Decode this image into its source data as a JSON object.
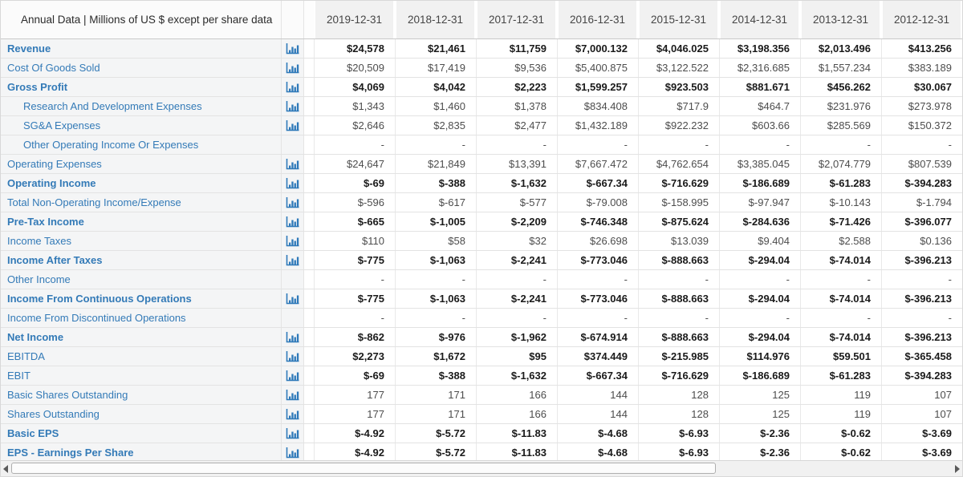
{
  "table": {
    "header_label": "Annual Data | Millions of US $ except per share data",
    "columns": [
      "2019-12-31",
      "2018-12-31",
      "2017-12-31",
      "2016-12-31",
      "2015-12-31",
      "2014-12-31",
      "2013-12-31",
      "2012-12-31"
    ],
    "rows": [
      {
        "label": "Revenue",
        "bold": true,
        "indent": false,
        "has_chart_icon": true,
        "values_bold": true,
        "values": [
          "$24,578",
          "$21,461",
          "$11,759",
          "$7,000.132",
          "$4,046.025",
          "$3,198.356",
          "$2,013.496",
          "$413.256"
        ]
      },
      {
        "label": "Cost Of Goods Sold",
        "bold": false,
        "indent": false,
        "has_chart_icon": true,
        "values_bold": false,
        "values": [
          "$20,509",
          "$17,419",
          "$9,536",
          "$5,400.875",
          "$3,122.522",
          "$2,316.685",
          "$1,557.234",
          "$383.189"
        ]
      },
      {
        "label": "Gross Profit",
        "bold": true,
        "indent": false,
        "has_chart_icon": true,
        "values_bold": true,
        "values": [
          "$4,069",
          "$4,042",
          "$2,223",
          "$1,599.257",
          "$923.503",
          "$881.671",
          "$456.262",
          "$30.067"
        ]
      },
      {
        "label": "Research And Development Expenses",
        "bold": false,
        "indent": true,
        "has_chart_icon": true,
        "values_bold": false,
        "values": [
          "$1,343",
          "$1,460",
          "$1,378",
          "$834.408",
          "$717.9",
          "$464.7",
          "$231.976",
          "$273.978"
        ]
      },
      {
        "label": "SG&A Expenses",
        "bold": false,
        "indent": true,
        "has_chart_icon": true,
        "values_bold": false,
        "values": [
          "$2,646",
          "$2,835",
          "$2,477",
          "$1,432.189",
          "$922.232",
          "$603.66",
          "$285.569",
          "$150.372"
        ]
      },
      {
        "label": "Other Operating Income Or Expenses",
        "bold": false,
        "indent": true,
        "has_chart_icon": false,
        "values_bold": false,
        "values": [
          "-",
          "-",
          "-",
          "-",
          "-",
          "-",
          "-",
          "-"
        ]
      },
      {
        "label": "Operating Expenses",
        "bold": false,
        "indent": false,
        "has_chart_icon": true,
        "values_bold": false,
        "values": [
          "$24,647",
          "$21,849",
          "$13,391",
          "$7,667.472",
          "$4,762.654",
          "$3,385.045",
          "$2,074.779",
          "$807.539"
        ]
      },
      {
        "label": "Operating Income",
        "bold": true,
        "indent": false,
        "has_chart_icon": true,
        "values_bold": true,
        "values": [
          "$-69",
          "$-388",
          "$-1,632",
          "$-667.34",
          "$-716.629",
          "$-186.689",
          "$-61.283",
          "$-394.283"
        ]
      },
      {
        "label": "Total Non-Operating Income/Expense",
        "bold": false,
        "indent": false,
        "has_chart_icon": true,
        "values_bold": false,
        "values": [
          "$-596",
          "$-617",
          "$-577",
          "$-79.008",
          "$-158.995",
          "$-97.947",
          "$-10.143",
          "$-1.794"
        ]
      },
      {
        "label": "Pre-Tax Income",
        "bold": true,
        "indent": false,
        "has_chart_icon": true,
        "values_bold": true,
        "values": [
          "$-665",
          "$-1,005",
          "$-2,209",
          "$-746.348",
          "$-875.624",
          "$-284.636",
          "$-71.426",
          "$-396.077"
        ]
      },
      {
        "label": "Income Taxes",
        "bold": false,
        "indent": false,
        "has_chart_icon": true,
        "values_bold": false,
        "values": [
          "$110",
          "$58",
          "$32",
          "$26.698",
          "$13.039",
          "$9.404",
          "$2.588",
          "$0.136"
        ]
      },
      {
        "label": "Income After Taxes",
        "bold": true,
        "indent": false,
        "has_chart_icon": true,
        "values_bold": true,
        "values": [
          "$-775",
          "$-1,063",
          "$-2,241",
          "$-773.046",
          "$-888.663",
          "$-294.04",
          "$-74.014",
          "$-396.213"
        ]
      },
      {
        "label": "Other Income",
        "bold": false,
        "indent": false,
        "has_chart_icon": false,
        "values_bold": false,
        "values": [
          "-",
          "-",
          "-",
          "-",
          "-",
          "-",
          "-",
          "-"
        ]
      },
      {
        "label": "Income From Continuous Operations",
        "bold": true,
        "indent": false,
        "has_chart_icon": true,
        "values_bold": true,
        "values": [
          "$-775",
          "$-1,063",
          "$-2,241",
          "$-773.046",
          "$-888.663",
          "$-294.04",
          "$-74.014",
          "$-396.213"
        ]
      },
      {
        "label": "Income From Discontinued Operations",
        "bold": false,
        "indent": false,
        "has_chart_icon": false,
        "values_bold": false,
        "values": [
          "-",
          "-",
          "-",
          "-",
          "-",
          "-",
          "-",
          "-"
        ]
      },
      {
        "label": "Net Income",
        "bold": true,
        "indent": false,
        "has_chart_icon": true,
        "values_bold": true,
        "values": [
          "$-862",
          "$-976",
          "$-1,962",
          "$-674.914",
          "$-888.663",
          "$-294.04",
          "$-74.014",
          "$-396.213"
        ]
      },
      {
        "label": "EBITDA",
        "bold": false,
        "indent": false,
        "has_chart_icon": true,
        "values_bold": true,
        "values": [
          "$2,273",
          "$1,672",
          "$95",
          "$374.449",
          "$-215.985",
          "$114.976",
          "$59.501",
          "$-365.458"
        ]
      },
      {
        "label": "EBIT",
        "bold": false,
        "indent": false,
        "has_chart_icon": true,
        "values_bold": true,
        "values": [
          "$-69",
          "$-388",
          "$-1,632",
          "$-667.34",
          "$-716.629",
          "$-186.689",
          "$-61.283",
          "$-394.283"
        ]
      },
      {
        "label": "Basic Shares Outstanding",
        "bold": false,
        "indent": false,
        "has_chart_icon": true,
        "values_bold": false,
        "values": [
          "177",
          "171",
          "166",
          "144",
          "128",
          "125",
          "119",
          "107"
        ]
      },
      {
        "label": "Shares Outstanding",
        "bold": false,
        "indent": false,
        "has_chart_icon": true,
        "values_bold": false,
        "values": [
          "177",
          "171",
          "166",
          "144",
          "128",
          "125",
          "119",
          "107"
        ]
      },
      {
        "label": "Basic EPS",
        "bold": true,
        "indent": false,
        "has_chart_icon": true,
        "values_bold": true,
        "values": [
          "$-4.92",
          "$-5.72",
          "$-11.83",
          "$-4.68",
          "$-6.93",
          "$-2.36",
          "$-0.62",
          "$-3.69"
        ]
      },
      {
        "label": "EPS - Earnings Per Share",
        "bold": true,
        "indent": false,
        "has_chart_icon": true,
        "values_bold": true,
        "values": [
          "$-4.92",
          "$-5.72",
          "$-11.83",
          "$-4.68",
          "$-6.93",
          "$-2.36",
          "$-0.62",
          "$-3.69"
        ]
      }
    ]
  },
  "icons": {
    "chart_icon_name": "bar-chart-icon"
  },
  "colors": {
    "link_blue": "#337ab7",
    "icon_blue": "#2e79b9",
    "value_text": "#4d4d4d",
    "bold_value_text": "#1a1a1a",
    "label_column_bg": "#f4f5f6",
    "header_cell_bg": "#f1f1f1",
    "row_border": "#e3e3e3"
  }
}
